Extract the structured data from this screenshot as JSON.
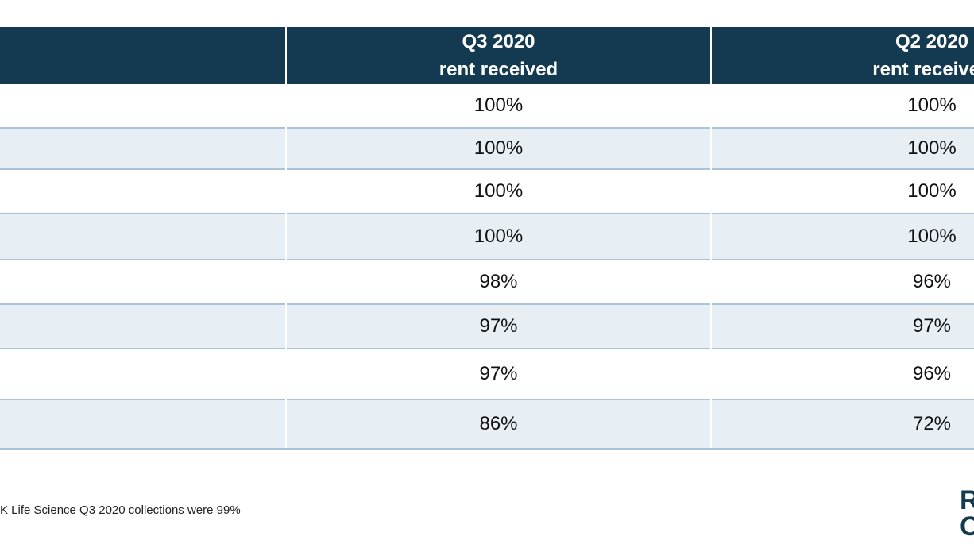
{
  "table": {
    "headers": [
      {
        "line1": "",
        "line2": ""
      },
      {
        "line1": "Q3 2020",
        "line2": "rent received"
      },
      {
        "line1": "Q2 2020",
        "line2": "rent received"
      }
    ],
    "rows": [
      {
        "label": "",
        "q3": "100%",
        "q2": "100%"
      },
      {
        "label": "",
        "q3": "100%",
        "q2": "100%"
      },
      {
        "label": "",
        "q3": "100%",
        "q2": "100%"
      },
      {
        "label": "",
        "q3": "100%",
        "q2": "100%"
      },
      {
        "label": "",
        "q3": "98%",
        "q2": "96%"
      },
      {
        "label": "",
        "q3": "97%",
        "q2": "97%"
      },
      {
        "label": "",
        "q3": "97%",
        "q2": "96%"
      },
      {
        "label": "",
        "q3": "86%",
        "q2": "72%"
      }
    ]
  },
  "footnote": "K Life Science Q3 2020 collections were 99%",
  "logo": {
    "line1": "R",
    "line2": "C"
  }
}
